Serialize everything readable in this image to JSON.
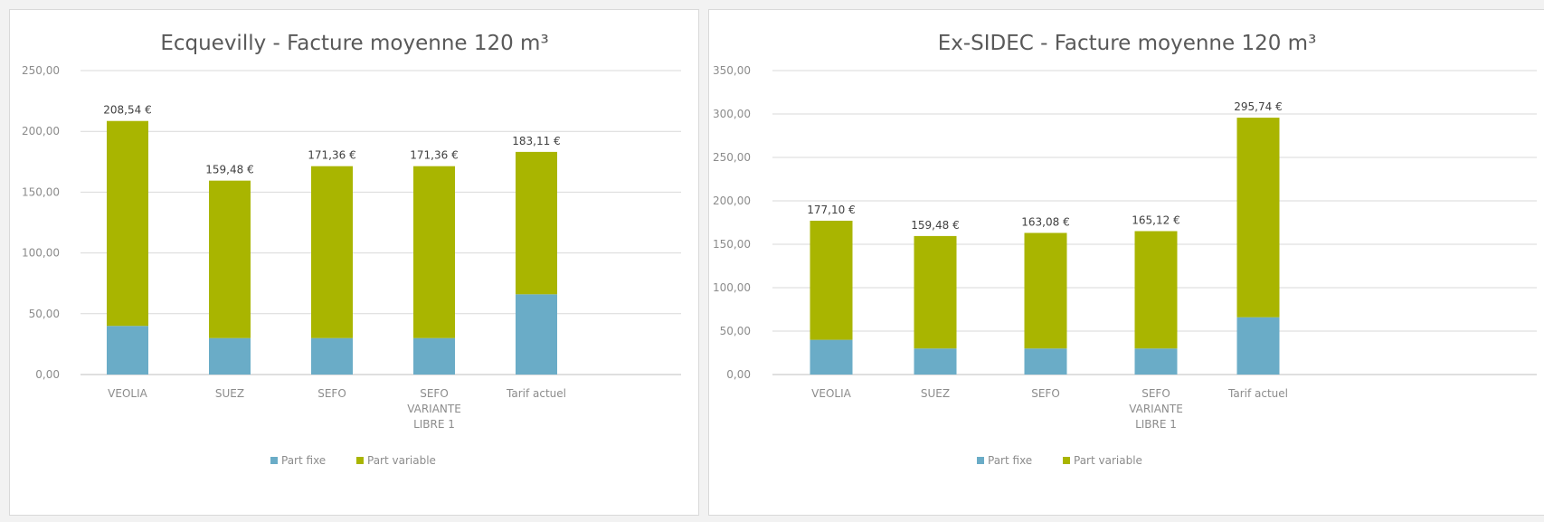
{
  "colors": {
    "fixe": "#6aacc7",
    "variable": "#a9b500",
    "grid": "#d9d9d9",
    "axis": "#bfbfbf"
  },
  "chart_data": [
    {
      "type": "bar",
      "stacked": true,
      "title": "Ecquevilly - Facture moyenne 120 m³",
      "categories": [
        [
          "VEOLIA"
        ],
        [
          "SUEZ"
        ],
        [
          "SEFO"
        ],
        [
          "SEFO",
          "VARIANTE",
          "LIBRE 1"
        ],
        [
          "Tarif actuel"
        ]
      ],
      "series": [
        {
          "name": "Part fixe",
          "values": [
            40,
            30,
            30,
            30,
            66
          ]
        },
        {
          "name": "Part variable",
          "values": [
            168.54,
            129.48,
            141.36,
            141.36,
            117.11
          ]
        }
      ],
      "data_labels": [
        "208,54 €",
        "159,48 €",
        "171,36 €",
        "171,36 €",
        "183,11 €"
      ],
      "ylim": [
        0,
        250
      ],
      "yticks": [
        "0,00",
        "50,00",
        "100,00",
        "150,00",
        "200,00",
        "250,00"
      ],
      "grid": true,
      "legend": "bottom"
    },
    {
      "type": "bar",
      "stacked": true,
      "title": "Ex-SIDEC - Facture moyenne 120 m³",
      "categories": [
        [
          "VEOLIA"
        ],
        [
          "SUEZ"
        ],
        [
          "SEFO"
        ],
        [
          "SEFO",
          "VARIANTE",
          "LIBRE 1"
        ],
        [
          "Tarif actuel"
        ]
      ],
      "series": [
        {
          "name": "Part fixe",
          "values": [
            40,
            30,
            30,
            30,
            66
          ]
        },
        {
          "name": "Part variable",
          "values": [
            137.1,
            129.48,
            133.08,
            135.12,
            229.74
          ]
        }
      ],
      "data_labels": [
        "177,10 €",
        "159,48 €",
        "163,08 €",
        "165,12 €",
        "295,74 €"
      ],
      "ylim": [
        0,
        350
      ],
      "yticks": [
        "0,00",
        "50,00",
        "100,00",
        "150,00",
        "200,00",
        "250,00",
        "300,00",
        "350,00"
      ],
      "grid": true,
      "legend": "bottom"
    }
  ]
}
